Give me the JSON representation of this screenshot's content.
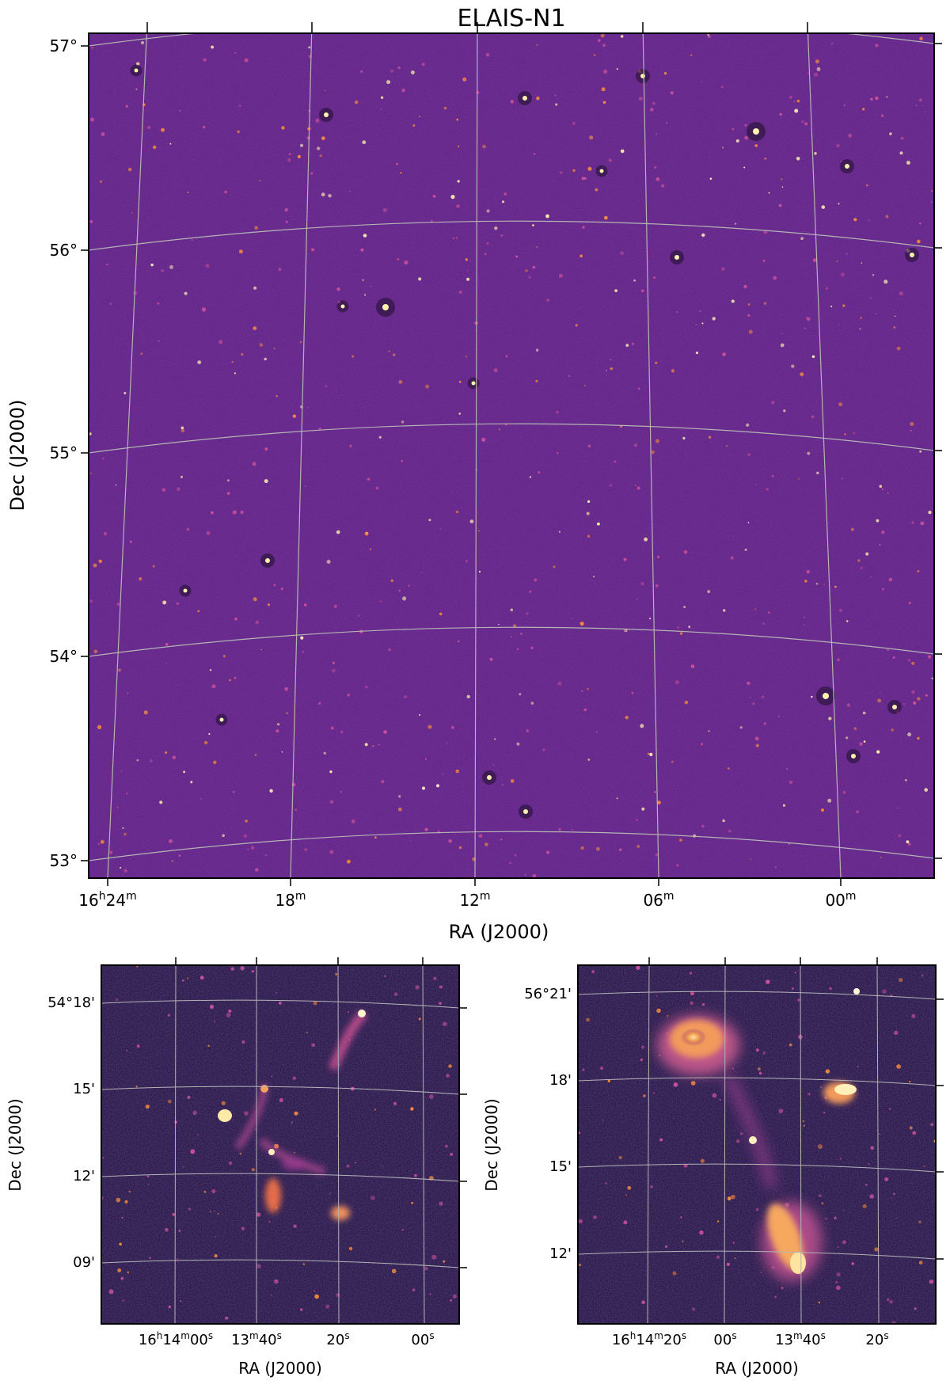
{
  "main_panel": {
    "title": "ELAIS-N1",
    "xlabel": "RA (J2000)",
    "ylabel": "Dec (J2000)",
    "dec_ticks": [
      "57°",
      "56°",
      "55°",
      "54°",
      "53°"
    ],
    "ra_ticks": [
      {
        "h": "16",
        "hs": "h",
        "m": "24",
        "ms": "m"
      },
      {
        "h": "",
        "hs": "",
        "m": "18",
        "ms": "m"
      },
      {
        "h": "",
        "hs": "",
        "m": "12",
        "ms": "m"
      },
      {
        "h": "",
        "hs": "",
        "m": "06",
        "ms": "m"
      },
      {
        "h": "",
        "hs": "",
        "m": "00",
        "ms": "m"
      }
    ]
  },
  "left_inset": {
    "xlabel": "RA (J2000)",
    "ylabel": "Dec (J2000)",
    "dec_ticks": [
      "54°18'",
      "15'",
      "12'",
      "09'"
    ],
    "ra_ticks": [
      {
        "text": "16",
        "s1": "h",
        "t2": "14",
        "s2": "m",
        "t3": "00",
        "s3": "s"
      },
      {
        "text": "13",
        "s1": "m",
        "t2": "40",
        "s2": "s",
        "t3": "",
        "s3": ""
      },
      {
        "text": "20",
        "s1": "s",
        "t2": "",
        "s2": "",
        "t3": "",
        "s3": ""
      },
      {
        "text": "00",
        "s1": "s",
        "t2": "",
        "s2": "",
        "t3": "",
        "s3": ""
      }
    ]
  },
  "right_inset": {
    "xlabel": "RA (J2000)",
    "ylabel": "Dec (J2000)",
    "dec_ticks": [
      "56°21'",
      "18'",
      "15'",
      "12'"
    ],
    "ra_ticks": [
      {
        "text": "16",
        "s1": "h",
        "t2": "14",
        "s2": "m",
        "t3": "20",
        "s3": "s"
      },
      {
        "text": "00",
        "s1": "s",
        "t2": "",
        "s2": "",
        "t3": "",
        "s3": ""
      },
      {
        "text": "13",
        "s1": "m",
        "t2": "40",
        "s2": "s",
        "t3": "",
        "s3": ""
      },
      {
        "text": "20",
        "s1": "s",
        "t2": "",
        "s2": "",
        "t3": "",
        "s3": ""
      }
    ]
  },
  "colors": {
    "background_main": "#5a1c82",
    "background_inset": "#1a0f3a",
    "grid": "#b4b4b4",
    "source_bright": "#fff2b0",
    "source_mid": "#f58c3c",
    "source_faint": "#c8509b"
  }
}
